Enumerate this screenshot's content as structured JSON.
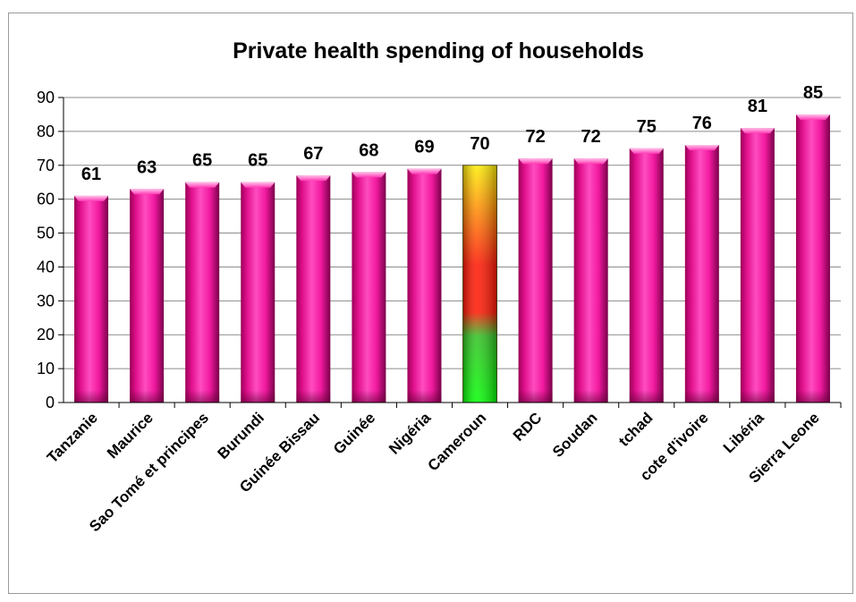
{
  "chart_data": {
    "type": "bar",
    "title": "Private health spending of households",
    "xlabel": "",
    "ylabel": "",
    "categories": [
      "Tanzanie",
      "Maurice",
      "Sao Tomé et principes",
      "Burundi",
      "Guinée Bissau",
      "Guinée",
      "Nigéria",
      "Cameroun",
      "RDC",
      "Soudan",
      "tchad",
      "cote d'ivoire",
      "Libéria",
      "Sierra Leone"
    ],
    "values": [
      61,
      63,
      65,
      65,
      67,
      68,
      69,
      70,
      72,
      72,
      75,
      76,
      81,
      85
    ],
    "data_labels": [
      "61",
      "63",
      "65",
      "65",
      "67",
      "68",
      "69",
      "70",
      "72",
      "72",
      "75",
      "76",
      "81",
      "85"
    ],
    "ylim": [
      0,
      90
    ],
    "yticks": [
      0,
      10,
      20,
      30,
      40,
      50,
      60,
      70,
      80,
      90
    ],
    "grid": true,
    "legend": "none",
    "highlight_category": "Cameroun",
    "colors": {
      "bar": "#ff1aa0",
      "bar_dark": "#8a0050",
      "highlight_top": "#ffee00",
      "highlight_mid": "#ff1a00",
      "highlight_bottom": "#00ff00",
      "grid": "#8c8c8c"
    }
  }
}
